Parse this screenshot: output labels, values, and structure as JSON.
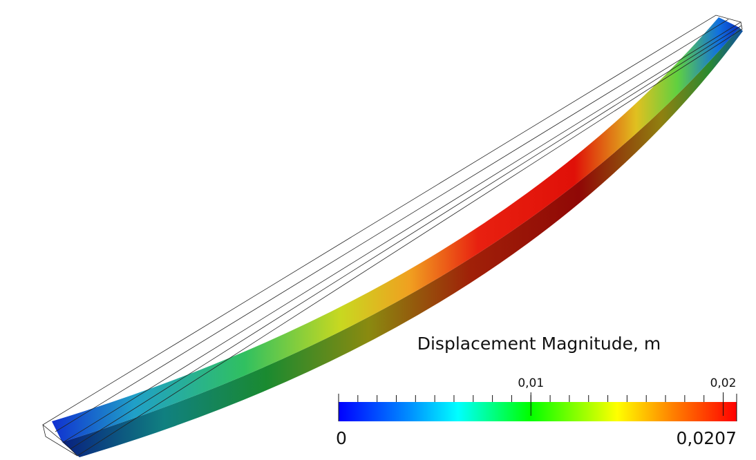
{
  "colorbar": {
    "title": "Displacement Magnitude, m",
    "range": [
      0,
      {
        "value": 0.0207,
        "label": "0,0207"
      }
    ],
    "ticks": [
      {
        "value": 0.01,
        "label": "0,01"
      },
      {
        "value": 0.02,
        "label": "0,02"
      }
    ]
  }
}
